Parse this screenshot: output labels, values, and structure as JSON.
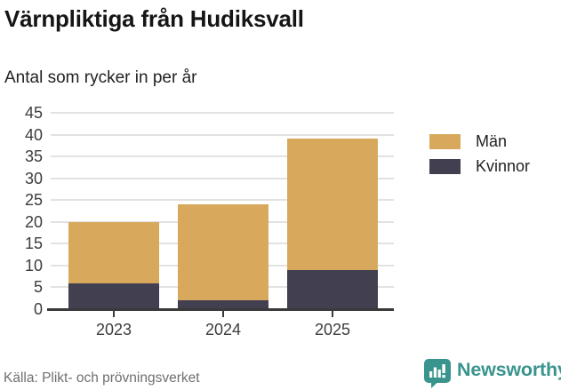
{
  "header": {
    "title": "Värnpliktiga från Hudiksvall",
    "subtitle": "Antal som rycker in per år"
  },
  "chart_data": {
    "type": "bar",
    "stacked": true,
    "title": "Värnpliktiga från Hudiksvall",
    "subtitle": "Antal som rycker in per år",
    "xlabel": "",
    "ylabel": "",
    "categories": [
      "2023",
      "2024",
      "2025"
    ],
    "series": [
      {
        "name": "Män",
        "color": "#d8a95c",
        "values": [
          14,
          22,
          30
        ]
      },
      {
        "name": "Kvinnor",
        "color": "#413f50",
        "values": [
          6,
          2,
          9
        ]
      }
    ],
    "stack_totals": [
      20,
      24,
      39
    ],
    "yticks": [
      0,
      5,
      10,
      15,
      20,
      25,
      30,
      35,
      40,
      45
    ],
    "ylim": [
      0,
      45
    ],
    "grid": true,
    "legend_position": "right-top"
  },
  "footer": {
    "source": "Källa: Plikt- och prövningsverket"
  },
  "branding": {
    "name": "Newsworthy",
    "logo_icon": "bar-chart-speech-bubble-icon",
    "brand_color": "#3a948e"
  },
  "style_colors": {
    "grid": "#e2e2e2",
    "axis": "#3a3a3a",
    "text": "#3d3d3d"
  }
}
